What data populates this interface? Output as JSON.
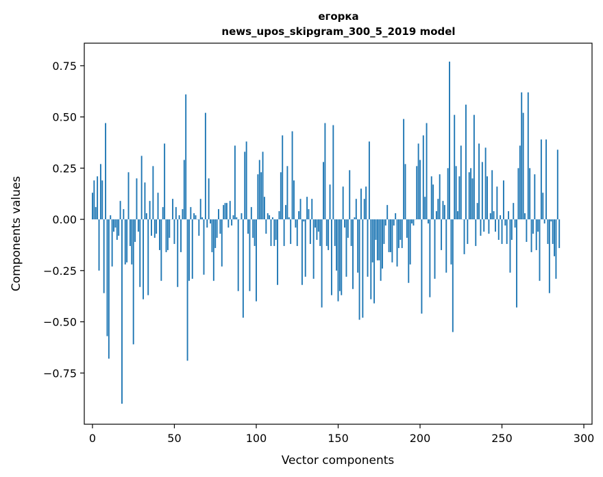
{
  "chart_data": {
    "type": "bar",
    "title": "егорка",
    "subtitle": "news_upos_skipgram_300_5_2019 model",
    "xlabel": "Vector components",
    "ylabel": "Components values",
    "xlim": [
      -5,
      305
    ],
    "ylim": [
      -1.0,
      0.86
    ],
    "xticks": [
      0,
      50,
      100,
      150,
      200,
      250,
      300
    ],
    "yticks": [
      0.75,
      0.5,
      0.25,
      0.0,
      -0.25,
      -0.5,
      -0.75
    ],
    "ytick_labels": [
      "0.75",
      "0.50",
      "0.25",
      "0.00",
      "−0.25",
      "−0.50",
      "−0.75"
    ],
    "xtick_labels": [
      "0",
      "50",
      "100",
      "150",
      "200",
      "250",
      "300"
    ],
    "bar_color": "#1f77b4",
    "grid": false,
    "values": [
      0.13,
      0.19,
      0.06,
      0.21,
      -0.25,
      0.27,
      0.19,
      -0.36,
      0.47,
      -0.57,
      -0.68,
      0.02,
      -0.23,
      -0.06,
      -0.04,
      -0.1,
      -0.08,
      0.09,
      -0.9,
      0.05,
      -0.22,
      -0.21,
      0.23,
      -0.13,
      -0.22,
      -0.61,
      -0.11,
      0.2,
      -0.06,
      -0.33,
      0.31,
      -0.39,
      0.18,
      0.03,
      -0.37,
      0.09,
      -0.08,
      0.26,
      -0.09,
      -0.07,
      0.13,
      -0.15,
      -0.3,
      0.06,
      0.37,
      -0.16,
      -0.15,
      -0.09,
      0.0,
      0.1,
      -0.12,
      0.06,
      -0.33,
      0.02,
      -0.16,
      0.05,
      0.29,
      0.61,
      -0.69,
      -0.3,
      0.06,
      -0.29,
      0.03,
      0.02,
      0.0,
      -0.08,
      0.1,
      0.01,
      -0.27,
      0.52,
      -0.04,
      0.2,
      -0.02,
      -0.16,
      -0.3,
      -0.14,
      -0.09,
      0.05,
      -0.07,
      -0.23,
      0.07,
      0.08,
      0.08,
      -0.04,
      0.09,
      -0.03,
      0.02,
      0.36,
      0.01,
      -0.35,
      0.0,
      0.03,
      -0.48,
      0.33,
      0.38,
      -0.07,
      -0.35,
      0.06,
      -0.09,
      -0.13,
      -0.4,
      0.22,
      0.29,
      0.23,
      0.33,
      0.11,
      -0.07,
      0.03,
      0.02,
      -0.13,
      0.01,
      -0.13,
      -0.1,
      -0.32,
      0.04,
      0.23,
      0.41,
      -0.13,
      0.07,
      0.26,
      0.01,
      -0.12,
      0.43,
      0.19,
      -0.04,
      -0.13,
      0.04,
      0.1,
      -0.32,
      -0.01,
      -0.28,
      0.11,
      0.05,
      -0.12,
      0.1,
      -0.29,
      -0.04,
      -0.1,
      -0.06,
      -0.13,
      -0.43,
      0.28,
      0.47,
      -0.13,
      -0.15,
      0.17,
      -0.37,
      0.46,
      -0.13,
      -0.25,
      -0.4,
      -0.35,
      -0.37,
      0.16,
      -0.04,
      -0.28,
      -0.09,
      0.24,
      -0.13,
      -0.34,
      0.01,
      0.1,
      -0.26,
      -0.49,
      0.15,
      -0.48,
      0.1,
      0.16,
      -0.28,
      0.38,
      -0.39,
      -0.21,
      -0.41,
      -0.1,
      -0.2,
      -0.2,
      -0.3,
      -0.24,
      -0.12,
      -0.03,
      0.07,
      -0.16,
      -0.16,
      -0.21,
      -0.03,
      0.03,
      -0.23,
      -0.14,
      -0.1,
      -0.14,
      0.49,
      0.27,
      -0.09,
      -0.31,
      -0.22,
      -0.02,
      -0.03,
      0.0,
      0.26,
      0.37,
      0.29,
      -0.46,
      0.41,
      0.11,
      0.47,
      -0.02,
      -0.38,
      0.21,
      0.17,
      -0.29,
      0.04,
      0.1,
      0.22,
      -0.15,
      0.09,
      0.07,
      -0.26,
      0.25,
      0.77,
      -0.22,
      -0.55,
      0.51,
      0.26,
      0.04,
      0.21,
      0.36,
      0.0,
      -0.17,
      0.56,
      -0.12,
      0.23,
      0.25,
      0.2,
      0.51,
      -0.13,
      0.08,
      0.37,
      -0.08,
      0.28,
      -0.06,
      0.35,
      0.21,
      -0.07,
      0.03,
      0.24,
      0.04,
      -0.06,
      0.16,
      -0.1,
      0.02,
      -0.12,
      0.19,
      -0.03,
      -0.12,
      0.04,
      -0.26,
      -0.1,
      0.08,
      -0.04,
      -0.43,
      0.25,
      0.36,
      0.62,
      0.52,
      0.03,
      -0.11,
      0.62,
      0.25,
      -0.16,
      -0.07,
      0.22,
      -0.15,
      -0.06,
      -0.3,
      0.39,
      0.13,
      -0.02,
      0.39,
      -0.12,
      -0.36,
      -0.01,
      -0.12,
      -0.18,
      -0.29,
      0.34,
      -0.14
    ]
  }
}
